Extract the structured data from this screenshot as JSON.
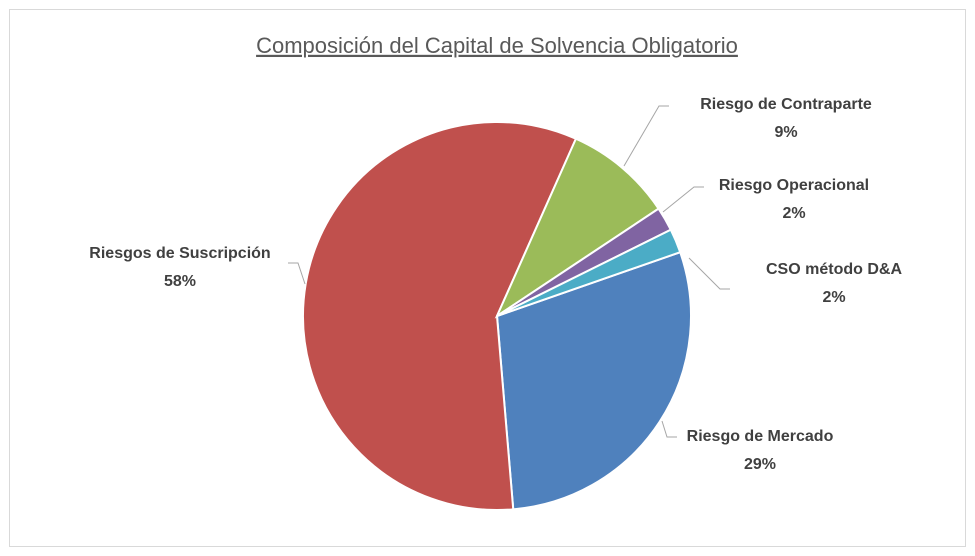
{
  "chart_data": {
    "type": "pie",
    "title": "Composición del Capital de Solvencia Obligatorio",
    "categories": [
      "Riesgo de Mercado",
      "Riesgos de Suscripción",
      "Riesgo de Contraparte",
      "Riesgo Operacional",
      "CSO método D&A"
    ],
    "values": [
      29,
      58,
      9,
      2,
      2
    ],
    "value_labels": [
      "29%",
      "58%",
      "9%",
      "2%",
      "2%"
    ],
    "colors": [
      "#4f81bd",
      "#c0504d",
      "#9bbb59",
      "#8064a2",
      "#4bacc6"
    ]
  }
}
